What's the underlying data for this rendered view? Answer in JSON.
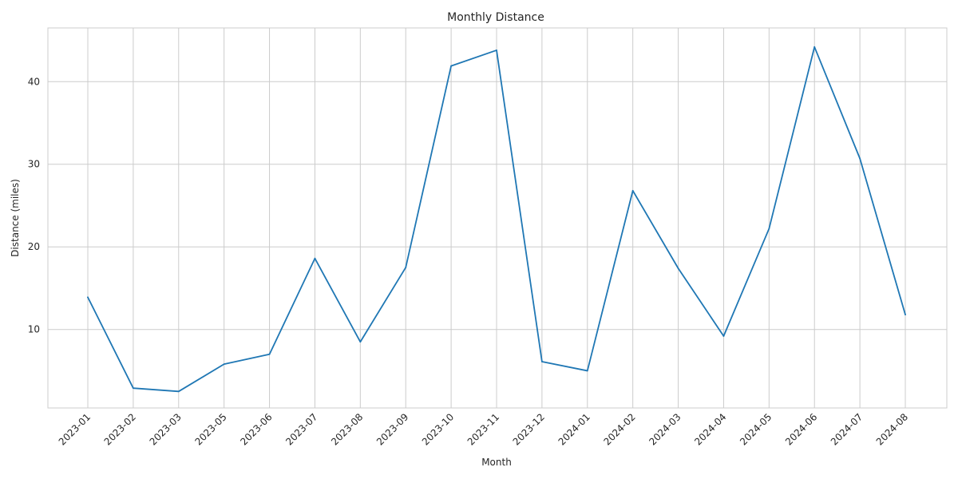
{
  "chart_data": {
    "type": "line",
    "title": "Monthly Distance",
    "xlabel": "Month",
    "ylabel": "Distance (miles)",
    "categories": [
      "2023-01",
      "2023-02",
      "2023-03",
      "2023-05",
      "2023-06",
      "2023-07",
      "2023-08",
      "2023-09",
      "2023-10",
      "2023-11",
      "2023-12",
      "2024-01",
      "2024-02",
      "2024-03",
      "2024-04",
      "2024-05",
      "2024-06",
      "2024-07",
      "2024-08"
    ],
    "series": [
      {
        "values": [
          13.9,
          2.9,
          2.5,
          5.8,
          7.0,
          18.6,
          8.5,
          17.5,
          41.9,
          43.8,
          6.1,
          5.0,
          26.8,
          17.4,
          9.2,
          22.2,
          44.2,
          30.7,
          11.8
        ]
      }
    ],
    "ylim": [
      0.5,
      46.5
    ],
    "yticks": [
      10,
      20,
      30,
      40
    ],
    "grid": true,
    "legend": "none",
    "color": "#1f77b4"
  }
}
